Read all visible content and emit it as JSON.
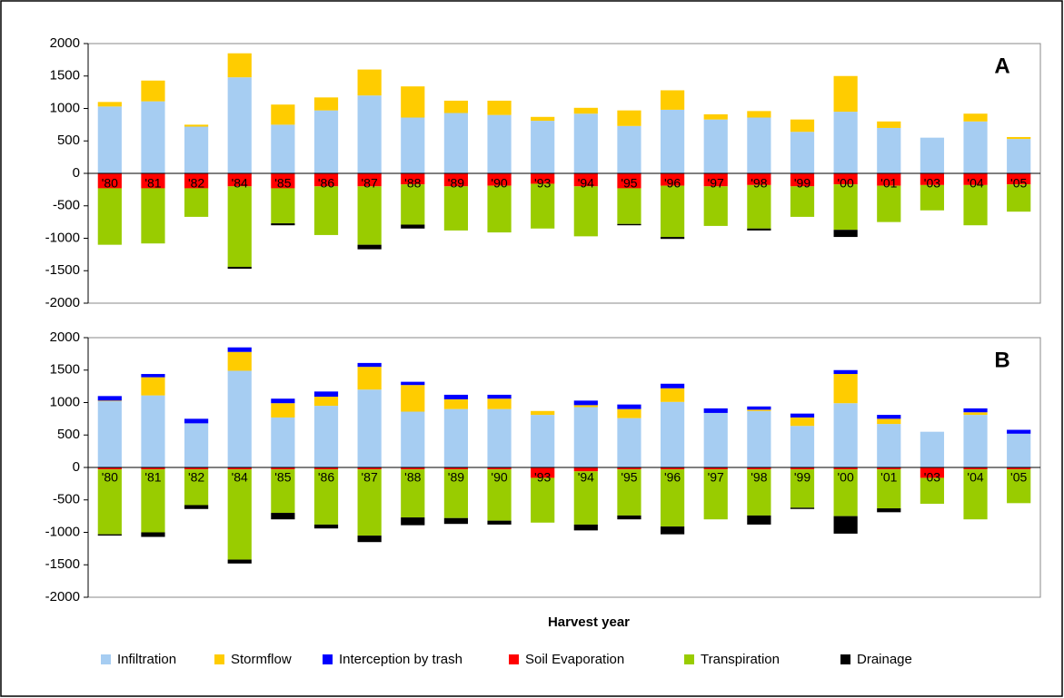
{
  "chart_data": [
    {
      "type": "bar",
      "stacked": true,
      "annotation": "A",
      "categories": [
        "'80",
        "'81",
        "'82",
        "'84",
        "'85",
        "'86",
        "'87",
        "'88",
        "'89",
        "'90",
        "'93",
        "'94",
        "'95",
        "'96",
        "'97",
        "'98",
        "'99",
        "'00",
        "'01",
        "'03",
        "'04",
        "'05"
      ],
      "series": [
        {
          "name": "Infiltration",
          "color": "#a6cdf2",
          "values": [
            1030,
            1110,
            720,
            1480,
            750,
            970,
            1200,
            860,
            930,
            900,
            810,
            920,
            730,
            980,
            830,
            860,
            640,
            950,
            700,
            550,
            800,
            530
          ]
        },
        {
          "name": "Stormflow",
          "color": "#ffcc00",
          "values": [
            70,
            320,
            30,
            370,
            310,
            200,
            400,
            480,
            190,
            220,
            60,
            90,
            240,
            300,
            80,
            100,
            190,
            550,
            100,
            0,
            120,
            30
          ]
        },
        {
          "name": "Soil Evaporation",
          "color": "#ff0000",
          "values": [
            -230,
            -230,
            -230,
            -200,
            -230,
            -200,
            -200,
            -170,
            -200,
            -190,
            -160,
            -200,
            -230,
            -190,
            -200,
            -180,
            -200,
            -170,
            -190,
            -180,
            -180,
            -170
          ]
        },
        {
          "name": "Transpiration",
          "color": "#99cc00",
          "values": [
            -870,
            -850,
            -440,
            -1240,
            -540,
            -750,
            -900,
            -620,
            -680,
            -720,
            -690,
            -770,
            -550,
            -790,
            -610,
            -670,
            -470,
            -700,
            -560,
            -390,
            -620,
            -420
          ]
        },
        {
          "name": "Drainage",
          "color": "#000000",
          "values": [
            0,
            0,
            0,
            -30,
            -30,
            0,
            -70,
            -60,
            0,
            0,
            0,
            0,
            -20,
            -30,
            0,
            -30,
            0,
            -110,
            0,
            0,
            0,
            0
          ]
        }
      ],
      "ylim": [
        -2000,
        2000
      ],
      "yticks": [
        -2000,
        -1500,
        -1000,
        -500,
        0,
        500,
        1000,
        1500,
        2000
      ]
    },
    {
      "type": "bar",
      "stacked": true,
      "annotation": "B",
      "xlabel": "Harvest year",
      "legend": true,
      "categories": [
        "'80",
        "'81",
        "'82",
        "'84",
        "'85",
        "'86",
        "'87",
        "'88",
        "'89",
        "'90",
        "'93",
        "'94",
        "'95",
        "'96",
        "'97",
        "'98",
        "'99",
        "'00",
        "'01",
        "'03",
        "'04",
        "'05"
      ],
      "series": [
        {
          "name": "Infiltration",
          "color": "#a6cdf2",
          "values": [
            1020,
            1110,
            680,
            1490,
            770,
            950,
            1200,
            860,
            900,
            900,
            810,
            930,
            760,
            1010,
            840,
            870,
            640,
            990,
            670,
            550,
            810,
            520
          ]
        },
        {
          "name": "Stormflow",
          "color": "#ffcc00",
          "values": [
            10,
            280,
            0,
            290,
            220,
            140,
            350,
            410,
            150,
            160,
            60,
            30,
            140,
            210,
            0,
            20,
            130,
            450,
            80,
            0,
            40,
            0
          ]
        },
        {
          "name": "Interception by trash",
          "color": "#0000ff",
          "values": [
            70,
            50,
            70,
            70,
            70,
            80,
            60,
            50,
            70,
            60,
            0,
            70,
            70,
            70,
            70,
            50,
            60,
            60,
            60,
            0,
            60,
            60
          ]
        },
        {
          "name": "Soil Evaporation",
          "color": "#ff0000",
          "values": [
            -30,
            -30,
            -30,
            -30,
            -30,
            -30,
            -30,
            -30,
            -30,
            -30,
            -160,
            -60,
            -30,
            -30,
            -30,
            -30,
            -30,
            -30,
            -30,
            -160,
            -30,
            -30
          ]
        },
        {
          "name": "Transpiration",
          "color": "#99cc00",
          "values": [
            -1000,
            -970,
            -550,
            -1390,
            -670,
            -850,
            -1020,
            -740,
            -750,
            -790,
            -690,
            -820,
            -710,
            -880,
            -770,
            -710,
            -590,
            -720,
            -600,
            -400,
            -770,
            -520
          ]
        },
        {
          "name": "Drainage",
          "color": "#000000",
          "values": [
            -20,
            -70,
            -60,
            -60,
            -100,
            -60,
            -100,
            -120,
            -90,
            -60,
            0,
            -90,
            -60,
            -120,
            0,
            -140,
            -20,
            -270,
            -60,
            0,
            0,
            0
          ]
        }
      ],
      "ylim": [
        -2000,
        2000
      ],
      "yticks": [
        -2000,
        -1500,
        -1000,
        -500,
        0,
        500,
        1000,
        1500,
        2000
      ]
    }
  ]
}
